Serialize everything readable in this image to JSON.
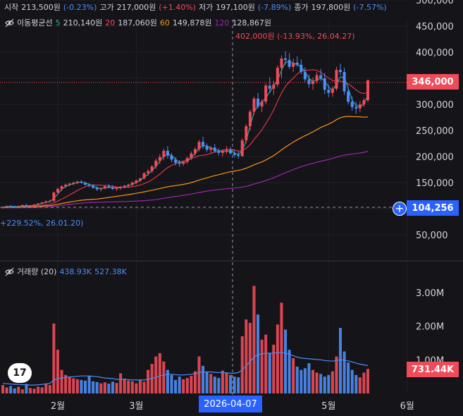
{
  "header": {
    "open_label": "시작",
    "open_value": "213,500원",
    "open_change": "(-0.23%)",
    "high_label": "고가",
    "high_value": "217,000원",
    "high_change": "(+1.40%)",
    "low_label": "저가",
    "low_value": "197,100원",
    "low_change": "(-7.89%)",
    "close_label": "종가",
    "close_value": "197,800원",
    "close_change": "(-7.57%)"
  },
  "ma_legend": {
    "title": "이동평균선",
    "items": [
      {
        "period": "5",
        "value": "210,140원",
        "color": "#26a69a"
      },
      {
        "period": "20",
        "value": "187,060원",
        "color": "#ef4b59"
      },
      {
        "period": "60",
        "value": "149,878원",
        "color": "#f7931a"
      },
      {
        "period": "120",
        "value": "128,867원",
        "color": "#9c27b0"
      }
    ]
  },
  "volume_legend": {
    "title": "거래량 (20)",
    "value1": "438.93K",
    "value2": "527.38K"
  },
  "annotations": {
    "high_marker": "402,000원 (-13.93%, 26.04.27)",
    "low_marker": "+229.52%, 26.01.20)"
  },
  "price_tags": {
    "last_price": "346,000",
    "crosshair_price": "104,256",
    "last_volume": "731.44K"
  },
  "crosshair_date": "2026-04-07",
  "logo_text": "17",
  "colors": {
    "up": "#ef4b59",
    "down": "#4c8ef7",
    "ma5": "#26a69a",
    "ma20": "#e0334a",
    "ma60": "#f7931a",
    "ma120": "#9c27b0",
    "vol_ma": "#4c8ef7",
    "background": "#151419"
  },
  "chart_data": {
    "type": "candlestick",
    "price_axis": {
      "min": 50000,
      "max": 500000,
      "ticks": [
        "50,000",
        "100,000",
        "150,000",
        "200,000",
        "250,000",
        "300,000",
        "350,000",
        "400,000",
        "450,000",
        "500,000"
      ],
      "tick_values": [
        50000,
        100000,
        150000,
        200000,
        250000,
        300000,
        350000,
        400000,
        450000,
        500000
      ]
    },
    "volume_axis": {
      "min": 0,
      "max": 3600000,
      "ticks": [
        "1.00M",
        "2.00M",
        "3.00M"
      ],
      "tick_values": [
        1000000,
        2000000,
        3000000
      ]
    },
    "time_axis": [
      "2월",
      "3월",
      "2026-04-07",
      "5월",
      "6월"
    ],
    "time_axis_index": [
      14,
      34,
      62,
      83,
      103
    ],
    "candles": [
      [
        102,
        104,
        100,
        103
      ],
      [
        103,
        106,
        101,
        105
      ],
      [
        105,
        107,
        103,
        104
      ],
      [
        104,
        106,
        102,
        103
      ],
      [
        103,
        106,
        102,
        105
      ],
      [
        105,
        108,
        104,
        107
      ],
      [
        107,
        109,
        104,
        105
      ],
      [
        105,
        107,
        103,
        106
      ],
      [
        106,
        109,
        105,
        108
      ],
      [
        108,
        111,
        107,
        110
      ],
      [
        110,
        113,
        109,
        112
      ],
      [
        112,
        116,
        111,
        114
      ],
      [
        114,
        117,
        112,
        115
      ],
      [
        115,
        133,
        113,
        131
      ],
      [
        131,
        140,
        128,
        138
      ],
      [
        138,
        145,
        134,
        143
      ],
      [
        143,
        148,
        140,
        146
      ],
      [
        146,
        150,
        143,
        148
      ],
      [
        148,
        152,
        145,
        150
      ],
      [
        150,
        154,
        147,
        152
      ],
      [
        152,
        155,
        148,
        150
      ],
      [
        150,
        152,
        144,
        146
      ],
      [
        146,
        149,
        141,
        144
      ],
      [
        144,
        147,
        138,
        140
      ],
      [
        140,
        143,
        134,
        137
      ],
      [
        137,
        141,
        133,
        139
      ],
      [
        139,
        145,
        137,
        143
      ],
      [
        143,
        147,
        139,
        141
      ],
      [
        141,
        145,
        136,
        138
      ],
      [
        138,
        142,
        134,
        140
      ],
      [
        140,
        144,
        136,
        142
      ],
      [
        142,
        146,
        139,
        144
      ],
      [
        144,
        148,
        140,
        146
      ],
      [
        146,
        152,
        143,
        150
      ],
      [
        150,
        156,
        147,
        154
      ],
      [
        154,
        160,
        151,
        158
      ],
      [
        158,
        170,
        156,
        168
      ],
      [
        168,
        176,
        163,
        172
      ],
      [
        172,
        184,
        168,
        181
      ],
      [
        181,
        196,
        176,
        192
      ],
      [
        192,
        205,
        186,
        199
      ],
      [
        199,
        215,
        193,
        211
      ],
      [
        211,
        220,
        196,
        202
      ],
      [
        202,
        207,
        189,
        194
      ],
      [
        194,
        199,
        183,
        188
      ],
      [
        188,
        193,
        180,
        186
      ],
      [
        186,
        192,
        182,
        190
      ],
      [
        190,
        200,
        186,
        197
      ],
      [
        197,
        210,
        193,
        206
      ],
      [
        206,
        218,
        202,
        214
      ],
      [
        214,
        232,
        210,
        228
      ],
      [
        228,
        238,
        215,
        220
      ],
      [
        220,
        225,
        209,
        213
      ],
      [
        213,
        220,
        205,
        217
      ],
      [
        217,
        224,
        208,
        210
      ],
      [
        210,
        216,
        202,
        207
      ],
      [
        207,
        214,
        200,
        211
      ],
      [
        211,
        220,
        205,
        213
      ],
      [
        213,
        218,
        204,
        206
      ],
      [
        206,
        212,
        199,
        203
      ],
      [
        203,
        209,
        196,
        201
      ],
      [
        201,
        235,
        199,
        231
      ],
      [
        231,
        262,
        226,
        258
      ],
      [
        258,
        290,
        250,
        286
      ],
      [
        286,
        315,
        280,
        311
      ],
      [
        311,
        322,
        292,
        296
      ],
      [
        296,
        310,
        285,
        305
      ],
      [
        305,
        340,
        300,
        336
      ],
      [
        336,
        352,
        322,
        330
      ],
      [
        330,
        345,
        318,
        338
      ],
      [
        338,
        375,
        333,
        370
      ],
      [
        370,
        394,
        350,
        388
      ],
      [
        388,
        402,
        376,
        385
      ],
      [
        385,
        398,
        368,
        372
      ],
      [
        372,
        388,
        362,
        380
      ],
      [
        380,
        392,
        372,
        376
      ],
      [
        376,
        386,
        358,
        362
      ],
      [
        362,
        371,
        343,
        348
      ],
      [
        348,
        357,
        332,
        339
      ],
      [
        339,
        352,
        328,
        345
      ],
      [
        345,
        362,
        340,
        356
      ],
      [
        356,
        368,
        345,
        350
      ],
      [
        350,
        360,
        320,
        328
      ],
      [
        328,
        338,
        314,
        322
      ],
      [
        322,
        335,
        315,
        330
      ],
      [
        330,
        372,
        326,
        366
      ],
      [
        366,
        378,
        356,
        362
      ],
      [
        362,
        370,
        318,
        325
      ],
      [
        325,
        332,
        300,
        305
      ],
      [
        305,
        315,
        288,
        295
      ],
      [
        295,
        305,
        282,
        292
      ],
      [
        292,
        306,
        285,
        300
      ],
      [
        300,
        312,
        295,
        308
      ],
      [
        308,
        348,
        304,
        346
      ]
    ],
    "volumes": [
      0.25,
      0.18,
      0.22,
      0.15,
      0.2,
      0.12,
      0.28,
      0.16,
      0.14,
      0.2,
      0.18,
      0.3,
      0.25,
      2.08,
      1.3,
      0.7,
      0.55,
      0.5,
      0.45,
      0.42,
      0.4,
      0.38,
      0.52,
      0.36,
      0.34,
      0.3,
      0.33,
      0.29,
      0.35,
      0.31,
      0.6,
      0.44,
      0.38,
      0.36,
      0.3,
      0.4,
      0.35,
      0.7,
      0.88,
      1.1,
      1.2,
      0.95,
      0.7,
      0.55,
      0.4,
      0.5,
      0.42,
      0.46,
      0.52,
      0.66,
      1.1,
      0.82,
      0.64,
      0.58,
      0.5,
      0.46,
      0.68,
      0.6,
      0.55,
      0.5,
      0.48,
      1.7,
      2.2,
      2.1,
      3.2,
      2.35,
      1.6,
      1.75,
      1.2,
      1.45,
      2.05,
      2.7,
      1.9,
      1.3,
      1.05,
      0.8,
      0.7,
      0.75,
      0.9,
      0.7,
      0.62,
      0.58,
      0.5,
      0.55,
      0.66,
      1.1,
      1.95,
      1.25,
      0.92,
      0.7,
      0.55,
      0.48,
      0.62,
      0.73
    ],
    "volume_ma": [
      0.3,
      0.29,
      0.28,
      0.27,
      0.27,
      0.26,
      0.26,
      0.25,
      0.25,
      0.26,
      0.27,
      0.28,
      0.3,
      0.4,
      0.44,
      0.46,
      0.48,
      0.49,
      0.5,
      0.51,
      0.52,
      0.52,
      0.52,
      0.51,
      0.5,
      0.48,
      0.46,
      0.45,
      0.44,
      0.42,
      0.42,
      0.42,
      0.41,
      0.4,
      0.4,
      0.4,
      0.4,
      0.42,
      0.45,
      0.48,
      0.52,
      0.55,
      0.57,
      0.57,
      0.56,
      0.55,
      0.55,
      0.56,
      0.57,
      0.59,
      0.62,
      0.64,
      0.64,
      0.64,
      0.63,
      0.62,
      0.62,
      0.61,
      0.6,
      0.6,
      0.62,
      0.7,
      0.82,
      0.95,
      1.08,
      1.15,
      1.18,
      1.2,
      1.2,
      1.2,
      1.21,
      1.22,
      1.2,
      1.16,
      1.12,
      1.08,
      1.05,
      1.04,
      1.03,
      1.02,
      1.01,
      1.0,
      0.98,
      0.97,
      0.96,
      0.98,
      1.0,
      0.99,
      0.97,
      0.94,
      0.9,
      0.87,
      0.85,
      0.83
    ]
  }
}
